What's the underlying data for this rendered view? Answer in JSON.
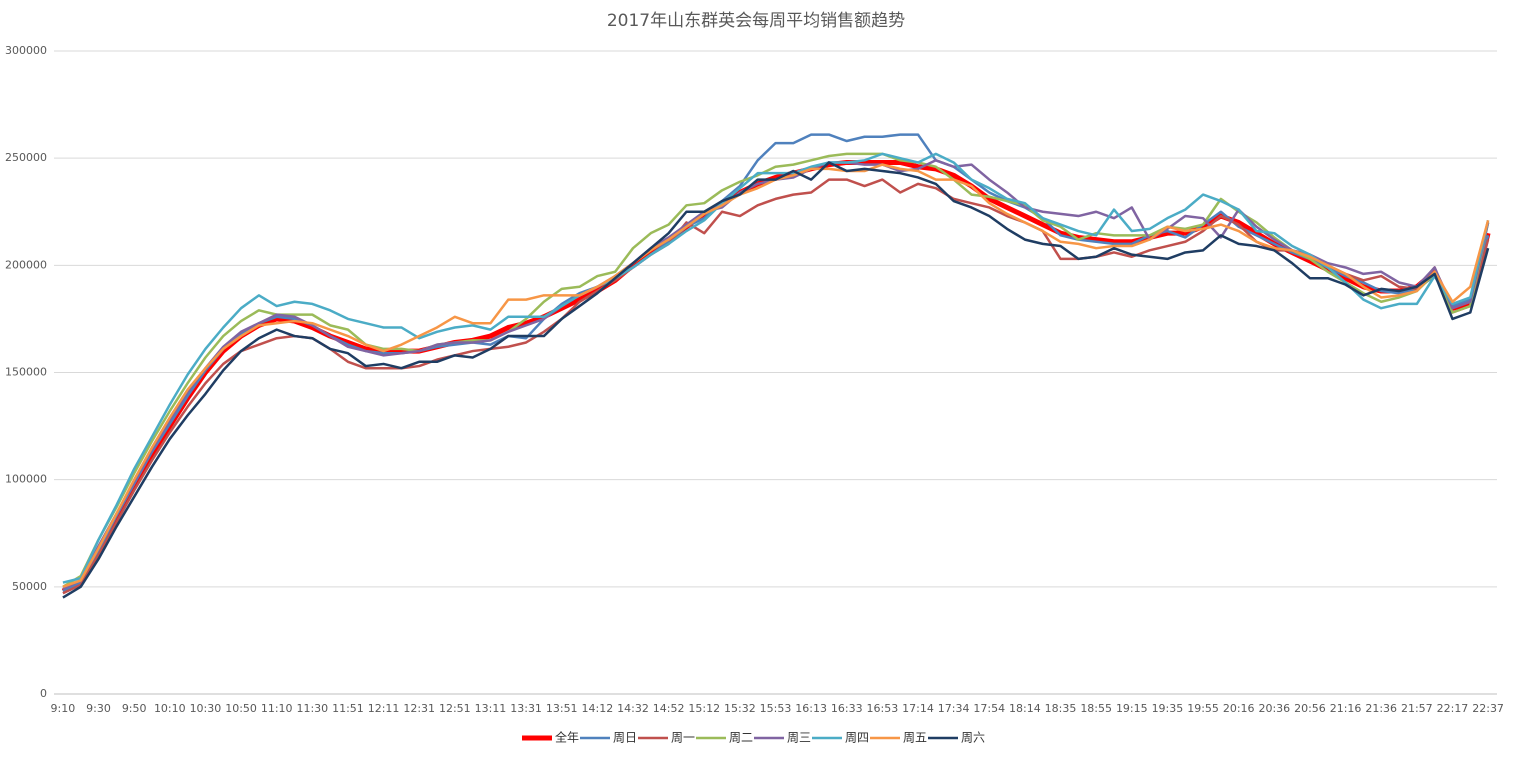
{
  "chart_data": {
    "type": "line",
    "title": "2017年山东群英会每周平均销售额趋势",
    "categories": [
      "9:10",
      null,
      "9:30",
      null,
      "9:50",
      null,
      "10:10",
      null,
      "10:30",
      null,
      "10:50",
      null,
      "11:10",
      null,
      "11:30",
      null,
      "11:51",
      null,
      "12:11",
      null,
      "12:31",
      null,
      "12:51",
      null,
      "13:11",
      null,
      "13:31",
      null,
      "13:51",
      null,
      "14:12",
      null,
      "14:32",
      null,
      "14:52",
      null,
      "15:12",
      null,
      "15:32",
      null,
      "15:53",
      null,
      "16:13",
      null,
      "16:33",
      null,
      "16:53",
      null,
      "17:14",
      null,
      "17:34",
      null,
      "17:54",
      null,
      "18:14",
      null,
      "18:35",
      null,
      "18:55",
      null,
      "19:15",
      null,
      "19:35",
      null,
      "19:55",
      null,
      "20:16",
      null,
      "20:36",
      null,
      "20:56",
      null,
      "21:16",
      null,
      "21:36",
      null,
      "21:57",
      null,
      "22:17",
      null,
      "22:37"
    ],
    "ylim": [
      0,
      300000
    ],
    "yticks": [
      0,
      50000,
      100000,
      150000,
      200000,
      250000,
      300000
    ],
    "grid": true,
    "legend": "bottom",
    "series": [
      {
        "name": "全年",
        "color": "#ff0000",
        "values": [
          48000,
          52000,
          66000,
          82000,
          97000,
          112000,
          125000,
          138000,
          150000,
          160000,
          167000,
          172000,
          175000,
          174000,
          171000,
          167000,
          164000,
          161000,
          160000,
          160000,
          160000,
          162000,
          164000,
          165000,
          167000,
          171000,
          173000,
          176000,
          180000,
          184000,
          188000,
          193000,
          200000,
          207000,
          212000,
          218000,
          224000,
          229000,
          234000,
          238000,
          241000,
          243000,
          245000,
          247000,
          248000,
          248000,
          248000,
          248000,
          246000,
          245000,
          242000,
          237000,
          231000,
          227000,
          223000,
          219000,
          215000,
          213000,
          212000,
          211000,
          211000,
          213000,
          215000,
          215000,
          218000,
          223000,
          220000,
          215000,
          210000,
          206000,
          202000,
          198000,
          194000,
          190000,
          188000,
          188000,
          190000,
          197000,
          180000,
          182000,
          215000
        ]
      },
      {
        "name": "周日",
        "color": "#4f81bd",
        "values": [
          48000,
          52000,
          67000,
          83000,
          98000,
          113000,
          126000,
          139000,
          151000,
          161000,
          168000,
          173000,
          176000,
          175000,
          172000,
          167000,
          163000,
          160000,
          159000,
          159000,
          160000,
          162000,
          163000,
          164000,
          163000,
          167000,
          166000,
          175000,
          182000,
          187000,
          190000,
          194000,
          199000,
          205000,
          211000,
          218000,
          222000,
          230000,
          237000,
          249000,
          257000,
          257000,
          261000,
          261000,
          258000,
          260000,
          260000,
          261000,
          261000,
          249000,
          246000,
          240000,
          234000,
          230000,
          227000,
          222000,
          214000,
          212000,
          211000,
          210000,
          210000,
          214000,
          216000,
          213000,
          219000,
          225000,
          218000,
          214000,
          210000,
          206000,
          203000,
          199000,
          195000,
          192000,
          188000,
          187000,
          189000,
          195000,
          181000,
          184000,
          214000
        ]
      },
      {
        "name": "周一",
        "color": "#c0504d",
        "values": [
          47000,
          51000,
          65000,
          80000,
          95000,
          109000,
          122000,
          134000,
          145000,
          154000,
          160000,
          163000,
          166000,
          167000,
          166000,
          161000,
          155000,
          152000,
          152000,
          152000,
          153000,
          156000,
          158000,
          160000,
          161000,
          162000,
          164000,
          169000,
          175000,
          183000,
          188000,
          193000,
          199000,
          205000,
          210000,
          220000,
          215000,
          225000,
          223000,
          228000,
          231000,
          233000,
          234000,
          240000,
          240000,
          237000,
          240000,
          234000,
          238000,
          236000,
          231000,
          229000,
          227000,
          223000,
          220000,
          216000,
          203000,
          203000,
          204000,
          206000,
          204000,
          207000,
          209000,
          211000,
          216000,
          223000,
          219000,
          211000,
          207000,
          207000,
          204000,
          200000,
          196000,
          193000,
          195000,
          190000,
          189000,
          199000,
          178000,
          181000,
          212000
        ]
      },
      {
        "name": "周二",
        "color": "#9bbb59",
        "values": [
          50000,
          55000,
          72000,
          87000,
          103000,
          118000,
          132000,
          145000,
          157000,
          167000,
          174000,
          179000,
          177000,
          177000,
          177000,
          172000,
          170000,
          163000,
          161000,
          161000,
          160000,
          163000,
          164000,
          165000,
          165000,
          169000,
          175000,
          183000,
          189000,
          190000,
          195000,
          197000,
          208000,
          215000,
          219000,
          228000,
          229000,
          235000,
          239000,
          242000,
          246000,
          247000,
          249000,
          251000,
          252000,
          252000,
          252000,
          249000,
          248000,
          246000,
          240000,
          233000,
          232000,
          230000,
          228000,
          221000,
          218000,
          212000,
          215000,
          214000,
          214000,
          214000,
          218000,
          217000,
          219000,
          231000,
          225000,
          220000,
          213000,
          207000,
          203000,
          197000,
          192000,
          187000,
          183000,
          185000,
          188000,
          196000,
          178000,
          181000,
          220000
        ]
      },
      {
        "name": "周三",
        "color": "#8064a2",
        "values": [
          49000,
          53000,
          69000,
          84000,
          99000,
          114000,
          128000,
          141000,
          152000,
          162000,
          169000,
          173000,
          177000,
          176000,
          172000,
          167000,
          162000,
          160000,
          158000,
          159000,
          160000,
          163000,
          164000,
          164000,
          165000,
          169000,
          172000,
          175000,
          181000,
          186000,
          190000,
          195000,
          201000,
          208000,
          213000,
          219000,
          225000,
          227000,
          234000,
          238000,
          240000,
          241000,
          245000,
          248000,
          248000,
          247000,
          247000,
          244000,
          245000,
          249000,
          246000,
          247000,
          240000,
          234000,
          227000,
          225000,
          224000,
          223000,
          225000,
          222000,
          227000,
          212000,
          217000,
          223000,
          222000,
          213000,
          226000,
          218000,
          212000,
          207000,
          205000,
          201000,
          199000,
          196000,
          197000,
          192000,
          190000,
          199000,
          180000,
          183000,
          220000
        ]
      },
      {
        "name": "周四",
        "color": "#4bacc6",
        "values": [
          52000,
          54000,
          72000,
          88000,
          105000,
          120000,
          135000,
          149000,
          161000,
          171000,
          180000,
          186000,
          181000,
          183000,
          182000,
          179000,
          175000,
          173000,
          171000,
          171000,
          166000,
          169000,
          171000,
          172000,
          170000,
          176000,
          176000,
          176000,
          181000,
          186000,
          190000,
          194000,
          199000,
          205000,
          210000,
          216000,
          221000,
          229000,
          236000,
          243000,
          243000,
          243000,
          246000,
          248000,
          248000,
          249000,
          252000,
          250000,
          248000,
          252000,
          248000,
          240000,
          236000,
          231000,
          229000,
          222000,
          219000,
          216000,
          214000,
          226000,
          216000,
          217000,
          222000,
          226000,
          233000,
          230000,
          226000,
          216000,
          215000,
          209000,
          205000,
          199000,
          192000,
          184000,
          180000,
          182000,
          182000,
          195000,
          182000,
          185000,
          221000
        ]
      },
      {
        "name": "周五",
        "color": "#f79646",
        "values": [
          50000,
          53000,
          68000,
          84000,
          100000,
          115000,
          129000,
          142000,
          152000,
          161000,
          167000,
          172000,
          173000,
          174000,
          173000,
          170000,
          167000,
          163000,
          160000,
          163000,
          167000,
          171000,
          176000,
          173000,
          173000,
          184000,
          184000,
          186000,
          186000,
          186000,
          190000,
          195000,
          201000,
          207000,
          212000,
          218000,
          224000,
          228000,
          233000,
          236000,
          240000,
          242000,
          245000,
          245000,
          244000,
          244000,
          247000,
          245000,
          244000,
          240000,
          240000,
          237000,
          229000,
          224000,
          220000,
          216000,
          211000,
          210000,
          208000,
          209000,
          209000,
          212000,
          218000,
          216000,
          217000,
          219000,
          216000,
          211000,
          208000,
          207000,
          204000,
          200000,
          196000,
          190000,
          185000,
          186000,
          188000,
          197000,
          183000,
          190000,
          221000
        ]
      },
      {
        "name": "周六",
        "color": "#1f3d63",
        "values": [
          45000,
          50000,
          63000,
          78000,
          92000,
          106000,
          119000,
          130000,
          140000,
          151000,
          160000,
          166000,
          170000,
          167000,
          166000,
          161000,
          159000,
          153000,
          154000,
          152000,
          155000,
          155000,
          158000,
          157000,
          161000,
          167000,
          167000,
          167000,
          175000,
          181000,
          187000,
          194000,
          201000,
          208000,
          215000,
          225000,
          225000,
          230000,
          233000,
          240000,
          240000,
          244000,
          240000,
          248000,
          244000,
          245000,
          244000,
          243000,
          241000,
          238000,
          230000,
          227000,
          223000,
          217000,
          212000,
          210000,
          209000,
          203000,
          204000,
          208000,
          205000,
          204000,
          203000,
          206000,
          207000,
          214000,
          210000,
          209000,
          207000,
          201000,
          194000,
          194000,
          191000,
          186000,
          189000,
          188000,
          190000,
          196000,
          175000,
          178000,
          208000
        ]
      }
    ]
  }
}
